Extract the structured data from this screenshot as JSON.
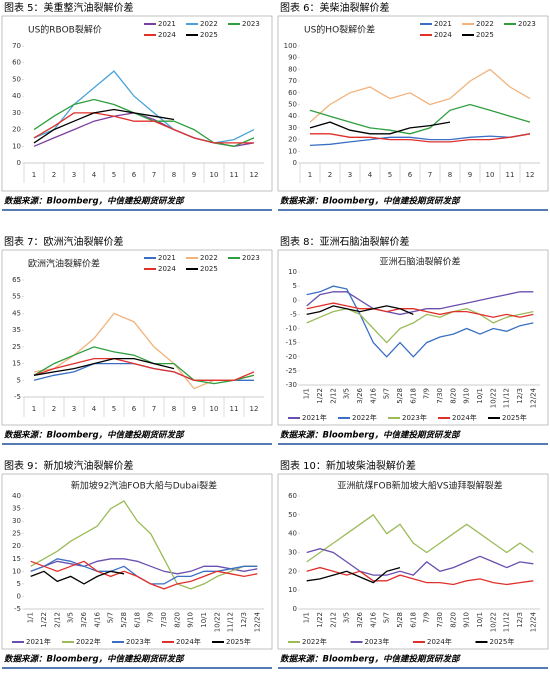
{
  "chart_data": [
    {
      "type": "line",
      "caption": "图表 5：美重整汽油裂解价差",
      "source": "数据来源：Bloomberg，中信建投期货研发部",
      "title": "US的RBOB裂解价",
      "categories": [
        "1",
        "2",
        "3",
        "4",
        "5",
        "6",
        "7",
        "8",
        "9",
        "10",
        "11",
        "12"
      ],
      "ylim": [
        0,
        70
      ],
      "yticks": [
        0,
        10,
        20,
        30,
        40,
        50,
        60,
        70
      ],
      "grid": false,
      "legend": "top-right",
      "series": [
        {
          "name": "2021",
          "color": "#7b3fa0",
          "values": [
            10,
            15,
            20,
            25,
            28,
            30,
            26,
            20,
            15,
            12,
            10,
            12
          ]
        },
        {
          "name": "2022",
          "color": "#4aa3d8",
          "values": [
            15,
            20,
            35,
            45,
            55,
            40,
            30,
            20,
            15,
            12,
            14,
            20
          ]
        },
        {
          "name": "2023",
          "color": "#2e9e3e",
          "values": [
            20,
            28,
            35,
            38,
            35,
            30,
            25,
            25,
            20,
            12,
            10,
            15
          ]
        },
        {
          "name": "2024",
          "color": "#e0302a",
          "values": [
            15,
            22,
            30,
            30,
            28,
            25,
            25,
            20,
            15,
            12,
            12,
            12
          ]
        },
        {
          "name": "2025",
          "color": "#000000",
          "values": [
            12,
            20,
            25,
            30,
            32,
            30,
            28,
            26,
            null,
            null,
            null,
            null
          ]
        }
      ]
    },
    {
      "type": "line",
      "caption": "图表 6：美柴油裂解价差",
      "source": "数据来源：Bloomberg，中信建投期货研发部",
      "title": "US的HO裂解价差",
      "categories": [
        "1",
        "2",
        "3",
        "4",
        "5",
        "6",
        "7",
        "8",
        "9",
        "10",
        "11",
        "12"
      ],
      "ylim": [
        0,
        100
      ],
      "yticks": [
        0,
        10,
        20,
        30,
        40,
        50,
        60,
        70,
        80,
        90,
        100
      ],
      "grid": false,
      "legend": "top-right",
      "series": [
        {
          "name": "2021",
          "color": "#3a6fc4",
          "values": [
            15,
            16,
            18,
            20,
            22,
            22,
            20,
            20,
            22,
            23,
            22,
            25
          ]
        },
        {
          "name": "2022",
          "color": "#f2b27a",
          "values": [
            35,
            50,
            60,
            65,
            55,
            60,
            50,
            55,
            70,
            80,
            65,
            55
          ]
        },
        {
          "name": "2023",
          "color": "#2e9e3e",
          "values": [
            45,
            40,
            35,
            30,
            28,
            25,
            30,
            45,
            50,
            45,
            40,
            35
          ]
        },
        {
          "name": "2024",
          "color": "#e0302a",
          "values": [
            25,
            25,
            22,
            22,
            20,
            20,
            18,
            18,
            20,
            20,
            22,
            25
          ]
        },
        {
          "name": "2025",
          "color": "#000000",
          "values": [
            30,
            35,
            28,
            25,
            25,
            30,
            32,
            35,
            null,
            null,
            null,
            null
          ]
        }
      ]
    },
    {
      "type": "line",
      "caption": "图表 7：欧洲汽油裂解价差",
      "source": "数据来源：Bloomberg，中信建投期货研发部",
      "title": "欧洲汽油裂解价差",
      "categories": [
        "1",
        "2",
        "3",
        "4",
        "5",
        "6",
        "7",
        "8",
        "9",
        "10",
        "11",
        "12"
      ],
      "ylim": [
        -5,
        65
      ],
      "yticks": [
        -5,
        5,
        15,
        25,
        35,
        45,
        55,
        65
      ],
      "grid": false,
      "legend": "top-right",
      "series": [
        {
          "name": "2021",
          "color": "#3a6fc4",
          "values": [
            5,
            8,
            10,
            15,
            15,
            15,
            12,
            10,
            5,
            5,
            5,
            5
          ]
        },
        {
          "name": "2022",
          "color": "#f2b27a",
          "values": [
            10,
            12,
            20,
            30,
            45,
            40,
            25,
            15,
            0,
            5,
            5,
            8
          ]
        },
        {
          "name": "2023",
          "color": "#2e9e3e",
          "values": [
            8,
            15,
            20,
            25,
            22,
            20,
            15,
            15,
            5,
            3,
            5,
            8
          ]
        },
        {
          "name": "2024",
          "color": "#e0302a",
          "values": [
            8,
            12,
            15,
            18,
            18,
            15,
            12,
            10,
            5,
            5,
            5,
            10
          ]
        },
        {
          "name": "2025",
          "color": "#000000",
          "values": [
            8,
            10,
            12,
            15,
            18,
            18,
            15,
            12,
            null,
            null,
            null,
            null
          ]
        }
      ]
    },
    {
      "type": "line",
      "caption": "图表 8：亚洲石脑油裂解价差",
      "source": "数据来源：Bloomberg，中信建投期货研发部",
      "title": "亚洲石脑油裂解价差",
      "categories": [
        "1/1",
        "1/22",
        "2/12",
        "3/5",
        "3/26",
        "4/16",
        "5/7",
        "5/28",
        "6/18",
        "7/9",
        "7/30",
        "8/20",
        "9/10",
        "10/1",
        "10/22",
        "11/12",
        "12/3",
        "12/24"
      ],
      "ylim": [
        -30,
        10
      ],
      "yticks": [
        -30,
        -25,
        -20,
        -15,
        -10,
        -5,
        0,
        5,
        10
      ],
      "grid": false,
      "legend": "bottom",
      "series": [
        {
          "name": "2021年",
          "color": "#6a4fb0",
          "values": [
            -2,
            2,
            3,
            3,
            0,
            -3,
            -4,
            -5,
            -4,
            -3,
            -3,
            -2,
            -1,
            0,
            1,
            2,
            3,
            3
          ]
        },
        {
          "name": "2022年",
          "color": "#3a6fc4",
          "values": [
            2,
            3,
            5,
            4,
            -5,
            -15,
            -20,
            -15,
            -20,
            -15,
            -13,
            -12,
            -10,
            -12,
            -10,
            -11,
            -9,
            -8
          ]
        },
        {
          "name": "2023年",
          "color": "#9bbb59",
          "values": [
            -8,
            -6,
            -4,
            -3,
            -5,
            -10,
            -15,
            -10,
            -8,
            -5,
            -6,
            -4,
            -3,
            -5,
            -8,
            -6,
            -5,
            -4
          ]
        },
        {
          "name": "2024年",
          "color": "#e0302a",
          "values": [
            -3,
            -2,
            -1,
            -2,
            -3,
            -3,
            -4,
            -3,
            -3,
            -4,
            -5,
            -4,
            -4,
            -5,
            -6,
            -5,
            -6,
            -5
          ]
        },
        {
          "name": "2025年",
          "color": "#000000",
          "values": [
            -5,
            -4,
            -2,
            -3,
            -4,
            -3,
            -2,
            -3,
            -5,
            null,
            null,
            null,
            null,
            null,
            null,
            null,
            null,
            null
          ]
        }
      ]
    },
    {
      "type": "line",
      "caption": "图表 9：新加坡汽油裂解价差",
      "source": "数据来源：Bloomberg，中信建投期货研发部",
      "title": "新加坡92汽油FOB大船与Dubai裂差",
      "categories": [
        "1/1",
        "1/22",
        "2/12",
        "3/5",
        "3/26",
        "4/16",
        "5/7",
        "5/28",
        "6/18",
        "7/9",
        "7/30",
        "8/20",
        "9/10",
        "10/1",
        "10/22",
        "11/12",
        "12/3",
        "12/24"
      ],
      "ylim": [
        -5,
        40
      ],
      "yticks": [
        -5,
        0,
        5,
        10,
        15,
        20,
        25,
        30,
        35,
        40
      ],
      "grid": false,
      "legend": "bottom",
      "series": [
        {
          "name": "2021年",
          "color": "#6a4fb0",
          "values": [
            10,
            12,
            14,
            13,
            12,
            14,
            15,
            15,
            14,
            12,
            10,
            9,
            10,
            12,
            12,
            11,
            10,
            11
          ]
        },
        {
          "name": "2022年",
          "color": "#9bbb59",
          "values": [
            12,
            15,
            18,
            22,
            25,
            28,
            35,
            38,
            30,
            25,
            15,
            5,
            3,
            5,
            8,
            10,
            12,
            12
          ]
        },
        {
          "name": "2023年",
          "color": "#3a6fc4",
          "values": [
            10,
            12,
            15,
            14,
            12,
            10,
            10,
            12,
            8,
            5,
            5,
            8,
            8,
            10,
            10,
            11,
            12,
            12
          ]
        },
        {
          "name": "2024年",
          "color": "#e0302a",
          "values": [
            14,
            12,
            10,
            12,
            14,
            10,
            8,
            10,
            8,
            5,
            3,
            5,
            6,
            8,
            10,
            9,
            8,
            9
          ]
        },
        {
          "name": "2025年",
          "color": "#000000",
          "values": [
            8,
            10,
            6,
            8,
            5,
            8,
            10,
            9,
            null,
            null,
            null,
            null,
            null,
            null,
            null,
            null,
            null,
            null
          ]
        }
      ]
    },
    {
      "type": "line",
      "caption": "图表 10：新加坡柴油裂解价差",
      "source": "数据来源：Bloomberg，中信建投期货研发部",
      "title": "亚洲航煤FOB新加坡大船VS迪拜裂解裂差",
      "categories": [
        "1/1",
        "1/22",
        "2/12",
        "3/5",
        "3/26",
        "4/16",
        "5/7",
        "5/28",
        "6/18",
        "7/9",
        "7/30",
        "8/20",
        "9/10",
        "10/1",
        "10/22",
        "11/12",
        "12/3",
        "12/24"
      ],
      "ylim": [
        0,
        60
      ],
      "yticks": [
        0,
        10,
        20,
        30,
        40,
        50,
        60
      ],
      "grid": false,
      "legend": "bottom",
      "series": [
        {
          "name": "2022年",
          "color": "#9bbb59",
          "values": [
            25,
            30,
            35,
            40,
            45,
            50,
            40,
            45,
            35,
            30,
            35,
            40,
            45,
            40,
            35,
            30,
            35,
            30
          ]
        },
        {
          "name": "2023年",
          "color": "#6a4fb0",
          "values": [
            30,
            32,
            30,
            25,
            20,
            18,
            18,
            20,
            18,
            25,
            20,
            22,
            25,
            28,
            25,
            22,
            25,
            24
          ]
        },
        {
          "name": "2024年",
          "color": "#e0302a",
          "values": [
            20,
            22,
            20,
            18,
            20,
            15,
            15,
            18,
            16,
            14,
            14,
            13,
            15,
            16,
            14,
            13,
            14,
            15
          ]
        },
        {
          "name": "2025年",
          "color": "#000000",
          "values": [
            15,
            16,
            18,
            20,
            17,
            14,
            20,
            22,
            null,
            null,
            null,
            null,
            null,
            null,
            null,
            null,
            null,
            null
          ]
        }
      ]
    }
  ]
}
